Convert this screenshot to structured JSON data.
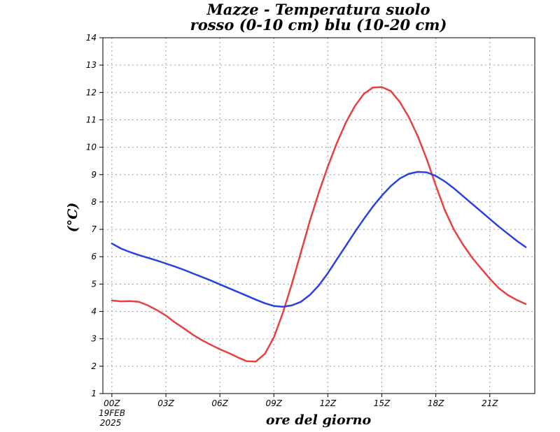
{
  "chart_data": {
    "type": "line",
    "title": "Mazze - Temperatura suolo",
    "subtitle": "rosso (0-10 cm) blu (10-20 cm)",
    "xlabel": "ore del giorno",
    "ylabel": "(°C)",
    "date_label_line1": "19FEB",
    "date_label_line2": "2025",
    "x_ticks": [
      {
        "hour": 0,
        "label": "00Z"
      },
      {
        "hour": 3,
        "label": "03Z"
      },
      {
        "hour": 6,
        "label": "06Z"
      },
      {
        "hour": 9,
        "label": "09Z"
      },
      {
        "hour": 12,
        "label": "12Z"
      },
      {
        "hour": 15,
        "label": "15Z"
      },
      {
        "hour": 18,
        "label": "18Z"
      },
      {
        "hour": 21,
        "label": "21Z"
      }
    ],
    "y_ticks": [
      "1",
      "2",
      "3",
      "4",
      "5",
      "6",
      "7",
      "8",
      "9",
      "10",
      "11",
      "12",
      "13",
      "14"
    ],
    "xlim": [
      -0.5,
      23.5
    ],
    "ylim": [
      1,
      14
    ],
    "grid": true,
    "series": [
      {
        "name": "rosso (0-10 cm)",
        "color": "#e84040",
        "x": [
          0,
          0.5,
          1,
          1.5,
          2,
          2.5,
          3,
          3.5,
          4,
          4.5,
          5,
          5.5,
          6,
          6.5,
          7,
          7.5,
          8,
          8.5,
          9,
          9.5,
          10,
          10.5,
          11,
          11.5,
          12,
          12.5,
          13,
          13.5,
          14,
          14.5,
          15,
          15.5,
          16,
          16.5,
          17,
          17.5,
          18,
          18.5,
          19,
          19.5,
          20,
          20.5,
          21,
          21.5,
          22,
          22.5,
          23
        ],
        "values": [
          4.4,
          4.37,
          4.38,
          4.35,
          4.22,
          4.05,
          3.85,
          3.6,
          3.38,
          3.15,
          2.95,
          2.78,
          2.62,
          2.48,
          2.32,
          2.18,
          2.17,
          2.45,
          3.05,
          3.95,
          5.0,
          6.15,
          7.3,
          8.35,
          9.3,
          10.15,
          10.9,
          11.5,
          11.95,
          12.18,
          12.2,
          12.05,
          11.65,
          11.1,
          10.4,
          9.55,
          8.6,
          7.7,
          7.0,
          6.45,
          5.98,
          5.58,
          5.2,
          4.85,
          4.6,
          4.42,
          4.27
        ]
      },
      {
        "name": "blu (10-20 cm)",
        "color": "#2a40e0",
        "x": [
          0,
          0.5,
          1,
          1.5,
          2,
          2.5,
          3,
          3.5,
          4,
          4.5,
          5,
          5.5,
          6,
          6.5,
          7,
          7.5,
          8,
          8.5,
          9,
          9.5,
          10,
          10.5,
          11,
          11.5,
          12,
          12.5,
          13,
          13.5,
          14,
          14.5,
          15,
          15.5,
          16,
          16.5,
          17,
          17.5,
          18,
          18.5,
          19,
          19.5,
          20,
          20.5,
          21,
          21.5,
          22,
          22.5,
          23
        ],
        "values": [
          6.48,
          6.3,
          6.17,
          6.06,
          5.96,
          5.86,
          5.75,
          5.64,
          5.52,
          5.39,
          5.26,
          5.13,
          4.99,
          4.85,
          4.71,
          4.57,
          4.43,
          4.3,
          4.2,
          4.17,
          4.22,
          4.35,
          4.6,
          4.95,
          5.4,
          5.9,
          6.4,
          6.9,
          7.38,
          7.83,
          8.23,
          8.58,
          8.86,
          9.03,
          9.1,
          9.08,
          8.95,
          8.75,
          8.5,
          8.22,
          7.94,
          7.66,
          7.38,
          7.1,
          6.84,
          6.58,
          6.35
        ]
      }
    ]
  }
}
